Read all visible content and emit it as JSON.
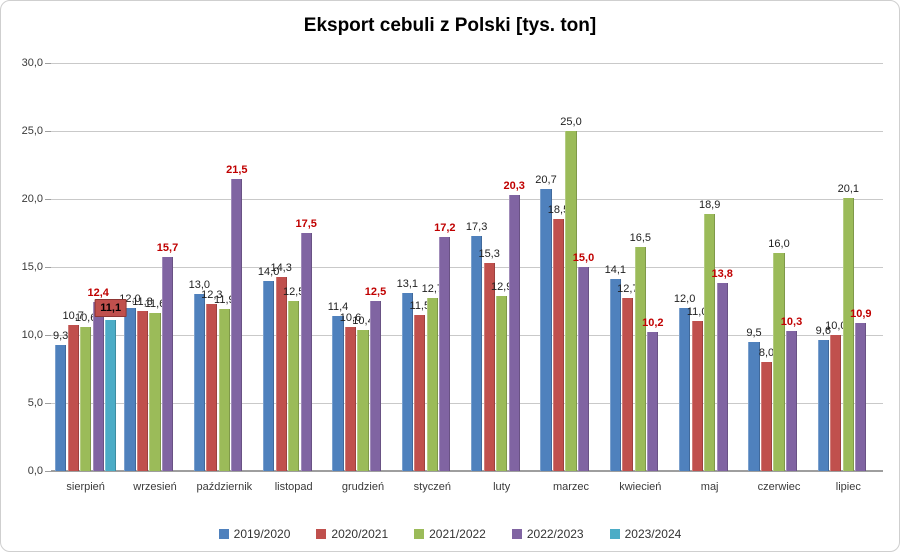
{
  "title": "Eksport cebuli z Polski [tys. ton]",
  "chart_data": {
    "type": "bar",
    "title": "Eksport cebuli z Polski [tys. ton]",
    "categories": [
      "sierpień",
      "wrzesień",
      "październik",
      "listopad",
      "grudzień",
      "styczeń",
      "luty",
      "marzec",
      "kwiecień",
      "maj",
      "czerwiec",
      "lipiec"
    ],
    "series": [
      {
        "name": "2019/2020",
        "color": "#4F81BD",
        "label_style": "normal",
        "values": [
          9.3,
          12.0,
          13.0,
          14.0,
          11.4,
          13.1,
          17.3,
          20.7,
          14.1,
          12.0,
          9.5,
          9.6
        ],
        "labels": [
          "9,3",
          "12,0",
          "13,0",
          "14,0",
          "11,4",
          "13,1",
          "17,3",
          "20,7",
          "14,1",
          "12,0",
          "9,5",
          "9,6"
        ]
      },
      {
        "name": "2020/2021",
        "color": "#C0504D",
        "label_style": "normal",
        "values": [
          10.7,
          11.8,
          12.3,
          14.3,
          10.6,
          11.5,
          15.3,
          18.5,
          12.7,
          11.0,
          8.0,
          10.0
        ],
        "labels": [
          "10,7",
          "11,8",
          "12,3",
          "14,3",
          "10,6",
          "11,5",
          "15,3",
          "18,5",
          "12,7",
          "11,0",
          "8,0",
          "10,0"
        ]
      },
      {
        "name": "2021/2022",
        "color": "#9BBB59",
        "label_style": "normal",
        "values": [
          10.6,
          11.6,
          11.9,
          12.5,
          10.4,
          12.7,
          12.9,
          25.0,
          16.5,
          18.9,
          16.0,
          20.1
        ],
        "labels": [
          "10,6",
          "11,6",
          "11,9",
          "12,5",
          "10,4",
          "12,7",
          "12,9",
          "25,0",
          "16,5",
          "18,9",
          "16,0",
          "20,1"
        ]
      },
      {
        "name": "2022/2023",
        "color": "#8064A2",
        "label_style": "red-bold",
        "values": [
          12.4,
          15.7,
          21.5,
          17.5,
          12.5,
          17.2,
          20.3,
          15.0,
          10.2,
          13.8,
          10.3,
          10.9
        ],
        "labels": [
          "12,4",
          "15,7",
          "21,5",
          "17,5",
          "12,5",
          "17,2",
          "20,3",
          "15,0",
          "10,2",
          "13,8",
          "10,3",
          "10,9"
        ]
      },
      {
        "name": "2023/2024",
        "color": "#4BACC6",
        "label_style": "boxed",
        "values": [
          11.1,
          null,
          null,
          null,
          null,
          null,
          null,
          null,
          null,
          null,
          null,
          null
        ],
        "labels": [
          "11,1",
          "",
          "",
          "",
          "",
          "",
          "",
          "",
          "",
          "",
          "",
          ""
        ]
      }
    ],
    "ylim": [
      0,
      30
    ],
    "ytick_step": 5,
    "yticks": [
      0,
      5,
      10,
      15,
      20,
      25,
      30
    ],
    "ytick_labels": [
      "0,0",
      "5,0",
      "10,0",
      "15,0",
      "20,0",
      "25,0",
      "30,0"
    ],
    "grid": true,
    "legend_position": "bottom",
    "label_color_normal": "#1f1f1f",
    "label_color_highlight": "#C00000",
    "highlight": {
      "series": "2023/2024",
      "category": "sierpień",
      "label": "11,1",
      "box_color": "#C0504D"
    }
  }
}
